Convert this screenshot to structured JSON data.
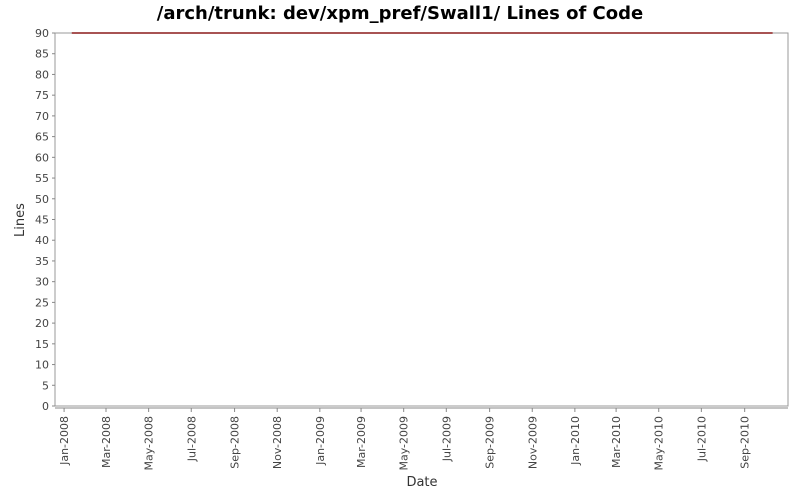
{
  "chart_data": {
    "type": "line",
    "title": "/arch/trunk: dev/xpm_pref/Swall1/ Lines of Code",
    "x_label": "Date",
    "y_label": "Lines",
    "x": [
      "2008-01-12",
      "2010-10-11"
    ],
    "series": [
      {
        "name": "Lines",
        "color": "#8b1a1a",
        "values": [
          90,
          90
        ]
      }
    ],
    "xlim": [
      "2007-12-19",
      "2010-11-02"
    ],
    "xticks": [
      {
        "value": "2008-01-01",
        "label": "Jan-2008"
      },
      {
        "value": "2008-03-01",
        "label": "Mar-2008"
      },
      {
        "value": "2008-05-01",
        "label": "May-2008"
      },
      {
        "value": "2008-07-01",
        "label": "Jul-2008"
      },
      {
        "value": "2008-09-01",
        "label": "Sep-2008"
      },
      {
        "value": "2008-11-01",
        "label": "Nov-2008"
      },
      {
        "value": "2009-01-01",
        "label": "Jan-2009"
      },
      {
        "value": "2009-03-01",
        "label": "Mar-2009"
      },
      {
        "value": "2009-05-01",
        "label": "May-2009"
      },
      {
        "value": "2009-07-01",
        "label": "Jul-2009"
      },
      {
        "value": "2009-09-01",
        "label": "Sep-2009"
      },
      {
        "value": "2009-11-01",
        "label": "Nov-2009"
      },
      {
        "value": "2010-01-01",
        "label": "Jan-2010"
      },
      {
        "value": "2010-03-01",
        "label": "Mar-2010"
      },
      {
        "value": "2010-05-01",
        "label": "May-2010"
      },
      {
        "value": "2010-07-01",
        "label": "Jul-2010"
      },
      {
        "value": "2010-09-01",
        "label": "Sep-2010"
      }
    ],
    "ylim": [
      0,
      90
    ],
    "yticks": [
      0,
      5,
      10,
      15,
      20,
      25,
      30,
      35,
      40,
      45,
      50,
      55,
      60,
      65,
      70,
      75,
      80,
      85,
      90
    ],
    "grid": false
  }
}
